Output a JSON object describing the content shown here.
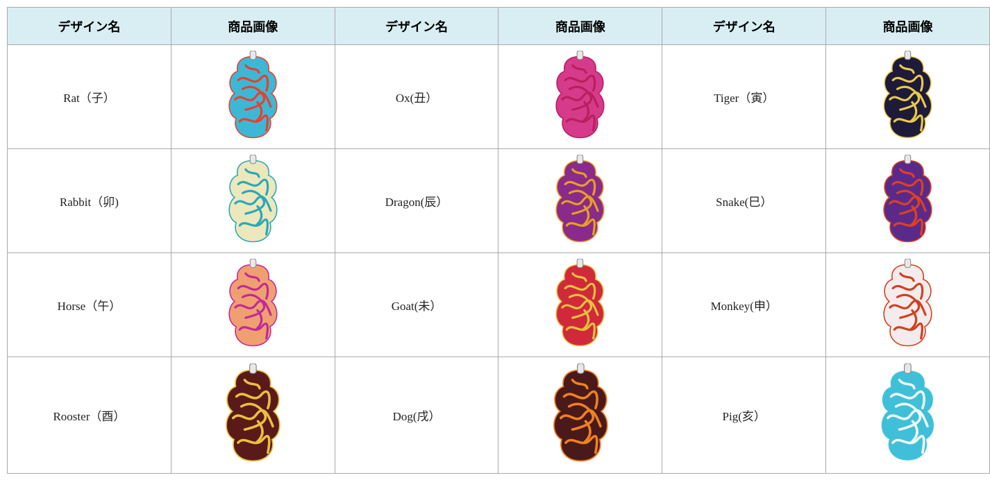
{
  "table": {
    "header": [
      "デザイン名",
      "商品画像",
      "デザイン名",
      "商品画像",
      "デザイン名",
      "商品画像"
    ],
    "rows": [
      [
        "Rat（子）",
        "Ox(丑）",
        "Tiger（寅）"
      ],
      [
        "Rabbit（卯)",
        "Dragon(辰）",
        "Snake(巳）"
      ],
      [
        "Horse（午）",
        "Goat(未）",
        "Monkey(申）"
      ],
      [
        "Rooster（酉）",
        "Dog(戌）",
        "Pig(亥）"
      ]
    ]
  }
}
